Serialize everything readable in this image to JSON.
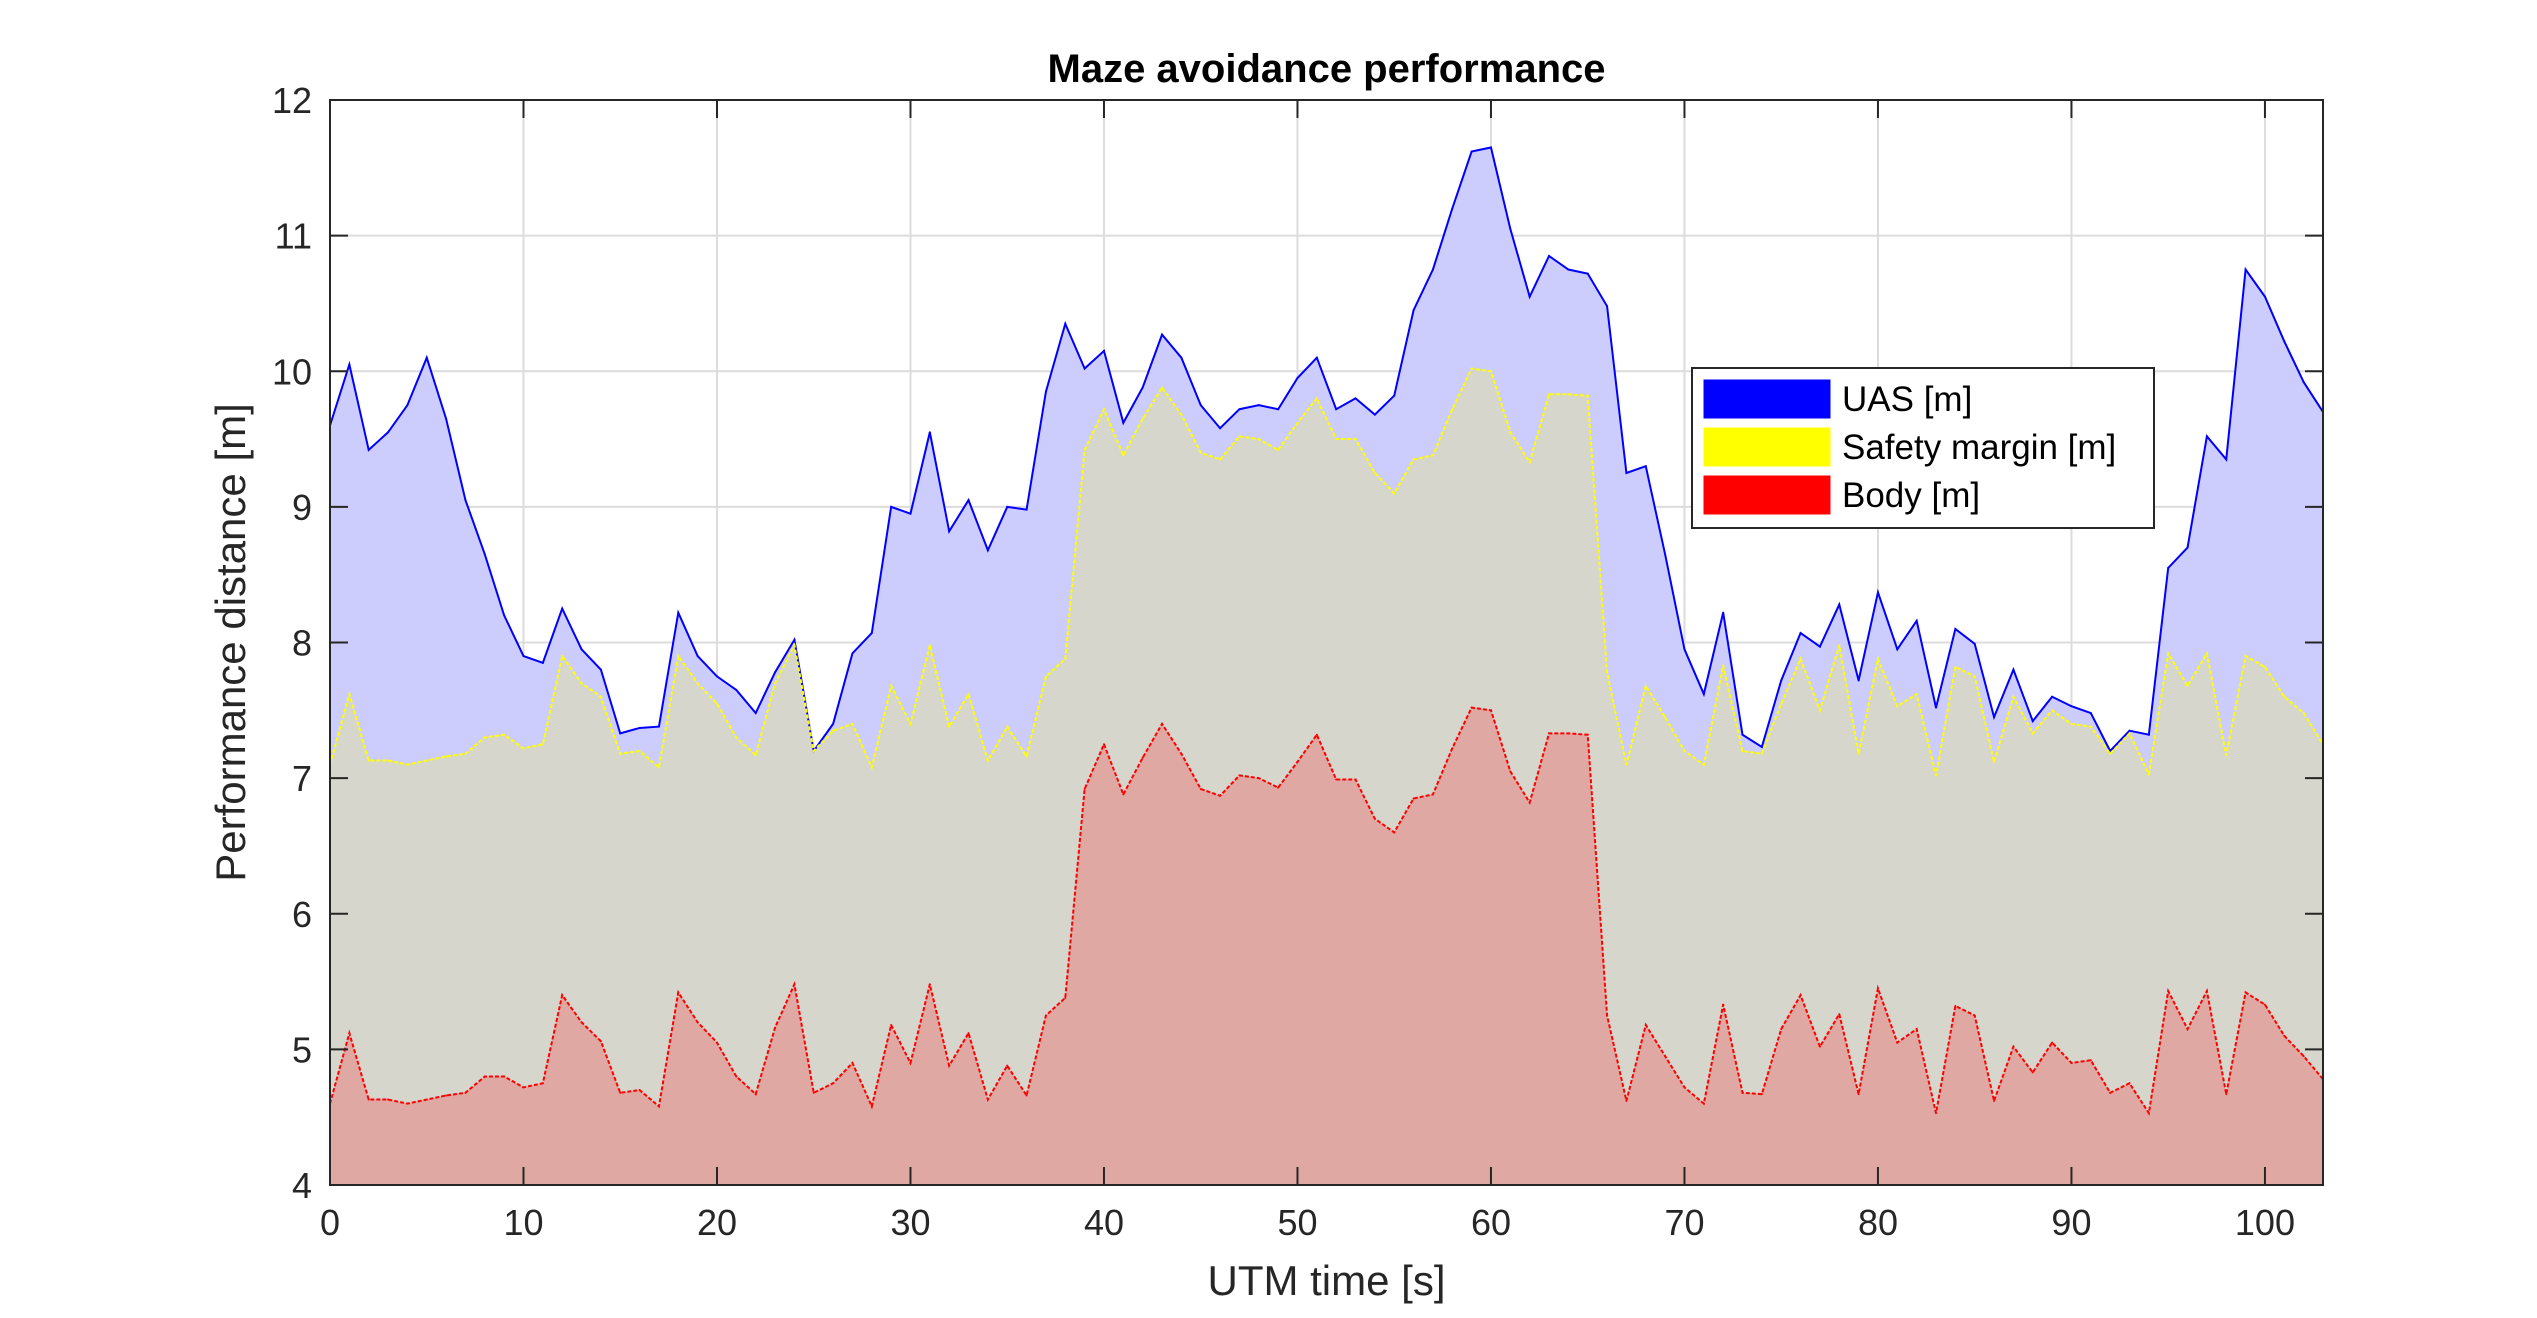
{
  "chart_data": {
    "type": "area",
    "title": "Maze avoidance performance",
    "xlabel": "UTM time [s]",
    "ylabel": "Performance distance [m]",
    "xlim": [
      0,
      103
    ],
    "ylim": [
      4,
      12
    ],
    "xticks": [
      0,
      10,
      20,
      30,
      40,
      50,
      60,
      70,
      80,
      90,
      100
    ],
    "yticks": [
      4,
      5,
      6,
      7,
      8,
      9,
      10,
      11,
      12
    ],
    "grid": true,
    "legend_position": "right",
    "x": [
      0,
      1,
      2,
      3,
      4,
      5,
      6,
      7,
      8,
      9,
      10,
      11,
      12,
      13,
      14,
      15,
      16,
      17,
      18,
      19,
      20,
      21,
      22,
      23,
      24,
      25,
      26,
      27,
      28,
      29,
      30,
      31,
      32,
      33,
      34,
      35,
      36,
      37,
      38,
      39,
      40,
      41,
      42,
      43,
      44,
      45,
      46,
      47,
      48,
      49,
      50,
      51,
      52,
      53,
      54,
      55,
      56,
      57,
      58,
      59,
      60,
      61,
      62,
      63,
      64,
      65,
      66,
      67,
      68,
      69,
      70,
      71,
      72,
      73,
      74,
      75,
      76,
      77,
      78,
      79,
      80,
      81,
      82,
      83,
      84,
      85,
      86,
      87,
      88,
      89,
      90,
      91,
      92,
      93,
      94,
      95,
      96,
      97,
      98,
      99,
      100,
      101,
      102,
      103
    ],
    "series": [
      {
        "name": "UAS [m]",
        "color": "#0000ff",
        "fill": "#ccccfd",
        "values": [
          9.6,
          10.05,
          9.42,
          9.55,
          9.75,
          10.1,
          9.65,
          9.05,
          8.65,
          8.2,
          7.9,
          7.85,
          8.25,
          7.95,
          7.8,
          7.33,
          7.37,
          7.38,
          8.22,
          7.9,
          7.75,
          7.65,
          7.48,
          7.78,
          8.02,
          7.2,
          7.4,
          7.92,
          8.07,
          9.0,
          8.95,
          9.55,
          8.82,
          9.05,
          8.68,
          9.0,
          8.98,
          9.85,
          10.35,
          10.02,
          10.15,
          9.62,
          9.88,
          10.27,
          10.1,
          9.75,
          9.58,
          9.72,
          9.75,
          9.72,
          9.95,
          10.1,
          9.72,
          9.8,
          9.68,
          9.82,
          10.45,
          10.75,
          11.2,
          11.62,
          11.65,
          11.05,
          10.55,
          10.85,
          10.75,
          10.72,
          10.48,
          9.25,
          9.3,
          8.65,
          7.95,
          7.62,
          8.22,
          7.32,
          7.23,
          7.72,
          8.07,
          7.97,
          8.28,
          7.72,
          8.37,
          7.95,
          8.16,
          7.52,
          8.1,
          7.99,
          7.45,
          7.8,
          7.42,
          7.6,
          7.53,
          7.48,
          7.2,
          7.35,
          7.32,
          8.55,
          8.7,
          9.52,
          9.35,
          10.75,
          10.55,
          10.22,
          9.92,
          9.7
        ]
      },
      {
        "name": "Safety margin [m]",
        "color": "#ffff00",
        "fill": "#d6d6cc",
        "values": [
          7.1,
          7.62,
          7.13,
          7.13,
          7.1,
          7.13,
          7.16,
          7.18,
          7.3,
          7.32,
          7.22,
          7.25,
          7.9,
          7.7,
          7.6,
          7.18,
          7.2,
          7.08,
          7.9,
          7.7,
          7.55,
          7.3,
          7.17,
          7.7,
          7.98,
          7.2,
          7.35,
          7.4,
          7.08,
          7.68,
          7.4,
          7.98,
          7.38,
          7.62,
          7.13,
          7.38,
          7.16,
          7.75,
          7.88,
          9.42,
          9.72,
          9.38,
          9.65,
          9.88,
          9.68,
          9.4,
          9.35,
          9.52,
          9.5,
          9.42,
          9.62,
          9.8,
          9.5,
          9.5,
          9.25,
          9.1,
          9.35,
          9.38,
          9.72,
          10.02,
          10.0,
          9.55,
          9.33,
          9.83,
          9.83,
          9.82,
          7.78,
          7.1,
          7.68,
          7.45,
          7.2,
          7.1,
          7.83,
          7.2,
          7.18,
          7.55,
          7.88,
          7.5,
          7.98,
          7.18,
          7.88,
          7.53,
          7.62,
          7.02,
          7.82,
          7.75,
          7.12,
          7.6,
          7.33,
          7.5,
          7.4,
          7.38,
          7.18,
          7.33,
          7.03,
          7.92,
          7.68,
          7.92,
          7.17,
          7.9,
          7.82,
          7.6,
          7.48,
          7.25
        ]
      },
      {
        "name": "Body [m]",
        "color": "#ff0000",
        "fill": "#e0a8a3",
        "values": [
          4.6,
          5.12,
          4.63,
          4.63,
          4.6,
          4.63,
          4.66,
          4.68,
          4.8,
          4.8,
          4.72,
          4.75,
          5.4,
          5.2,
          5.06,
          4.68,
          4.7,
          4.58,
          5.42,
          5.2,
          5.05,
          4.8,
          4.67,
          5.16,
          5.48,
          4.68,
          4.75,
          4.9,
          4.58,
          5.18,
          4.9,
          5.48,
          4.88,
          5.12,
          4.63,
          4.88,
          4.66,
          5.25,
          5.38,
          6.92,
          7.25,
          6.88,
          7.15,
          7.4,
          7.18,
          6.92,
          6.87,
          7.02,
          7.0,
          6.93,
          7.12,
          7.32,
          6.99,
          6.99,
          6.7,
          6.6,
          6.85,
          6.88,
          7.22,
          7.52,
          7.5,
          7.05,
          6.82,
          7.33,
          7.33,
          7.32,
          5.25,
          4.62,
          5.18,
          4.95,
          4.72,
          4.6,
          5.33,
          4.68,
          4.67,
          5.15,
          5.4,
          5.02,
          5.26,
          4.67,
          5.45,
          5.05,
          5.15,
          4.53,
          5.32,
          5.25,
          4.62,
          5.02,
          4.83,
          5.05,
          4.9,
          4.92,
          4.68,
          4.75,
          4.53,
          5.43,
          5.15,
          5.43,
          4.67,
          5.42,
          5.33,
          5.1,
          4.95,
          4.78
        ]
      }
    ]
  }
}
